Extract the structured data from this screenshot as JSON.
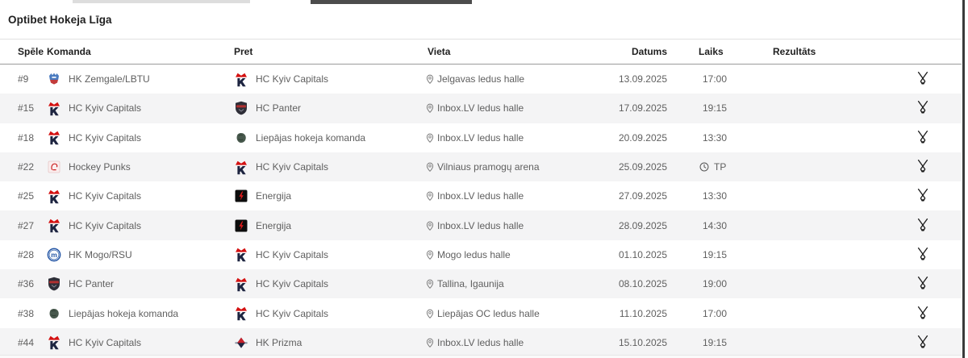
{
  "page": {
    "title": "Optibet Hokeja Līga"
  },
  "colors": {
    "accent_red": "#d21b1b",
    "navy": "#1d2440",
    "row_alt_bg": "#f4f4f5",
    "text_muted": "#5f5f5f",
    "header_text": "#212121"
  },
  "table": {
    "columns": {
      "game": "Spēle",
      "team": "Komanda",
      "opponent": "Pret",
      "venue": "Vieta",
      "date": "Datums",
      "time": "Laiks",
      "result": "Rezultāts"
    },
    "rows": [
      {
        "game": "#9",
        "team": "HK Zemgale/LBTU",
        "team_logo": "zemgale",
        "opponent": "HC Kyiv Capitals",
        "opponent_logo": "kyiv",
        "venue": "Jelgavas ledus halle",
        "date": "13.09.2025",
        "time": "17:00",
        "time_icon": ""
      },
      {
        "game": "#15",
        "team": "HC Kyiv Capitals",
        "team_logo": "kyiv",
        "opponent": "HC Panter",
        "opponent_logo": "panter",
        "venue": "Inbox.LV ledus halle",
        "date": "17.09.2025",
        "time": "19:15",
        "time_icon": ""
      },
      {
        "game": "#18",
        "team": "HC Kyiv Capitals",
        "team_logo": "kyiv",
        "opponent": "Liepājas hokeja komanda",
        "opponent_logo": "liepaja",
        "venue": "Inbox.LV ledus halle",
        "date": "20.09.2025",
        "time": "13:30",
        "time_icon": ""
      },
      {
        "game": "#22",
        "team": "Hockey Punks",
        "team_logo": "punks",
        "opponent": "HC Kyiv Capitals",
        "opponent_logo": "kyiv",
        "venue": "Vilniaus pramogų arena",
        "date": "25.09.2025",
        "time": "TP",
        "time_icon": "clock"
      },
      {
        "game": "#25",
        "team": "HC Kyiv Capitals",
        "team_logo": "kyiv",
        "opponent": "Energija",
        "opponent_logo": "energija",
        "venue": "Inbox.LV ledus halle",
        "date": "27.09.2025",
        "time": "13:30",
        "time_icon": ""
      },
      {
        "game": "#27",
        "team": "HC Kyiv Capitals",
        "team_logo": "kyiv",
        "opponent": "Energija",
        "opponent_logo": "energija",
        "venue": "Inbox.LV ledus halle",
        "date": "28.09.2025",
        "time": "14:30",
        "time_icon": ""
      },
      {
        "game": "#28",
        "team": "HK Mogo/RSU",
        "team_logo": "mogo",
        "opponent": "HC Kyiv Capitals",
        "opponent_logo": "kyiv",
        "venue": "Mogo ledus halle",
        "date": "01.10.2025",
        "time": "19:15",
        "time_icon": ""
      },
      {
        "game": "#36",
        "team": "HC Panter",
        "team_logo": "panter",
        "opponent": "HC Kyiv Capitals",
        "opponent_logo": "kyiv",
        "venue": "Tallina, Igaunija",
        "date": "08.10.2025",
        "time": "19:00",
        "time_icon": ""
      },
      {
        "game": "#38",
        "team": "Liepājas hokeja komanda",
        "team_logo": "liepaja",
        "opponent": "HC Kyiv Capitals",
        "opponent_logo": "kyiv",
        "venue": "Liepājas OC ledus halle",
        "date": "11.10.2025",
        "time": "17:00",
        "time_icon": ""
      },
      {
        "game": "#44",
        "team": "HC Kyiv Capitals",
        "team_logo": "kyiv",
        "opponent": "HK Prizma",
        "opponent_logo": "prizma",
        "venue": "Inbox.LV ledus halle",
        "date": "15.10.2025",
        "time": "19:15",
        "time_icon": ""
      }
    ]
  }
}
